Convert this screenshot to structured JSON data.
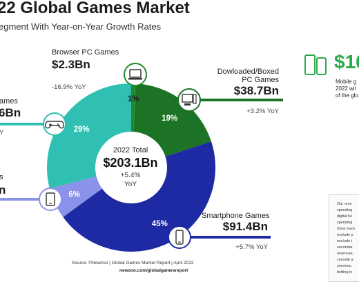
{
  "header": {
    "title": "22 Global Games Market",
    "subtitle": "egment With Year-on-Year Growth Rates"
  },
  "labels": {
    "browser": {
      "name": "Browser PC Games",
      "value": "$2.3Bn",
      "yoy": "-16.9% YoY"
    },
    "downloaded": {
      "name_line1": "Dowloaded/Boxed",
      "name_line2": "PC Games",
      "value": "$38.7Bn",
      "yoy": "+3.2% YoY"
    },
    "console": {
      "name": "ames",
      "value": "6Bn",
      "yoy": "Y"
    },
    "smartphone": {
      "name": "Smartphone Games",
      "value": "$91.4Bn",
      "yoy": "+5.7% YoY"
    },
    "tablet": {
      "name": "s",
      "value": "n"
    }
  },
  "center": {
    "label": "2022 Total",
    "value": "$203.1Bn",
    "growth_line1": "+5.4%",
    "growth_line2": "YoY"
  },
  "mobile_callout": {
    "value": "$10",
    "text": "Mobile g\n2022 wil\nof the glo"
  },
  "notes": "Our reve\nspending\ndigital ful\nspending\nXbox Gam\nexclude p\nexclude t\nsecondar\nrevenues\nconsole a\nservices,\nbetting in",
  "footer": {
    "source": "Source: ©Newzoo | Global Games Market Report | April 2022",
    "site": "newzoo.com/globalgamesreport"
  },
  "colors": {
    "browser": "#1f8a2e",
    "downloaded": "#1c7325",
    "smartphone": "#1d2aa3",
    "tablet": "#8b92ea",
    "console": "#2fc0b3",
    "accent_green": "#2cab4d"
  },
  "icons": {
    "browser": "laptop-icon",
    "downloaded": "desktop-pc-icon",
    "console": "gamepad-icon",
    "smartphone": "smartphone-icon",
    "tablet": "tablet-icon",
    "mobile": "phone-tablet-icon"
  },
  "chart_data": {
    "type": "pie",
    "title": "",
    "total": 203.1,
    "slices": [
      {
        "label": "1%",
        "value": 1,
        "color": "#1f8a2e"
      },
      {
        "label": "19%",
        "value": 19,
        "color": "#1c7325"
      },
      {
        "label": "45%",
        "value": 45,
        "color": "#1d2aa3"
      },
      {
        "label": "6%",
        "value": 6,
        "color": "#8b92ea"
      },
      {
        "label": "29%",
        "value": 29,
        "color": "#2fc0b3"
      }
    ]
  }
}
